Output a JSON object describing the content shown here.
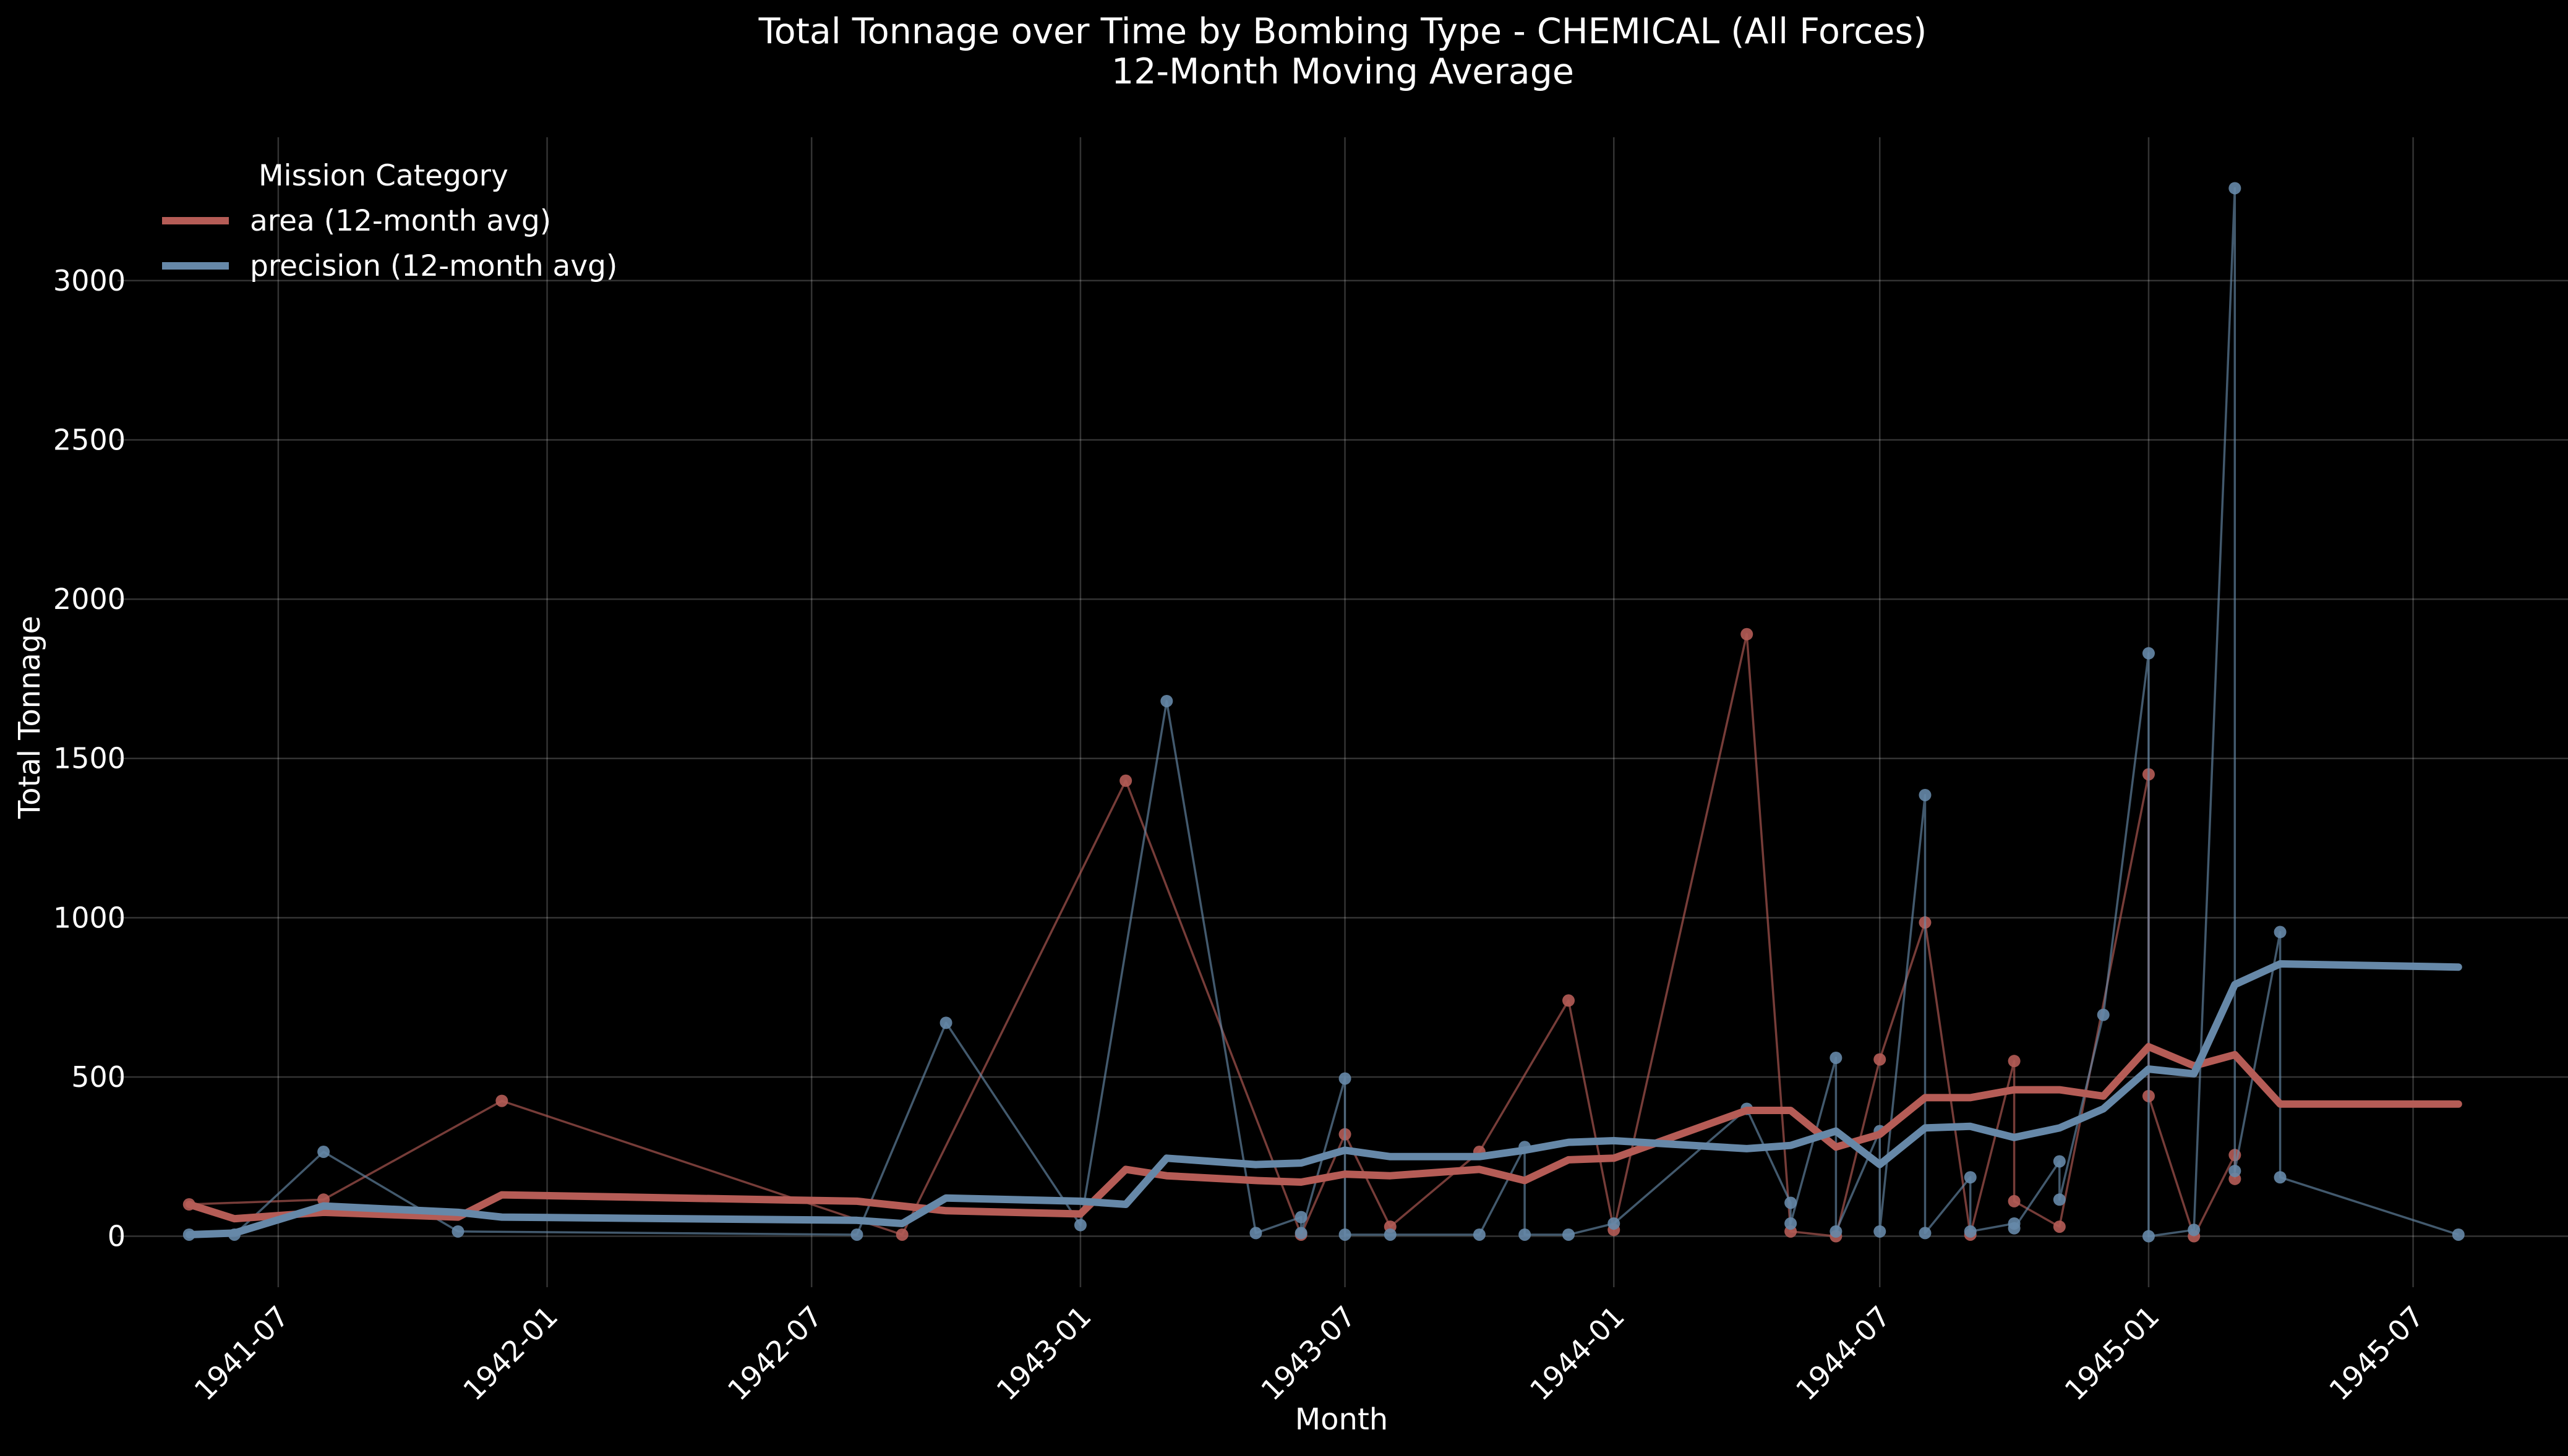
{
  "chart_data": {
    "type": "line",
    "title": "Total Tonnage over Time by Bombing Type - CHEMICAL (All Forces)",
    "subtitle": "12-Month Moving Average",
    "xlabel": "Month",
    "ylabel": "Total Tonnage",
    "x_axis_type": "date",
    "xlim": [
      "1941-03-13",
      "1945-10-15"
    ],
    "ylim": [
      -160,
      3450
    ],
    "x_ticks": [
      "1941-07",
      "1942-01",
      "1942-07",
      "1943-01",
      "1943-07",
      "1944-01",
      "1944-07",
      "1945-01",
      "1945-07"
    ],
    "y_ticks": [
      0,
      500,
      1000,
      1500,
      2000,
      2500,
      3000
    ],
    "grid": true,
    "background": "#000000",
    "legend": {
      "title": "Mission Category",
      "placement": "top-left"
    },
    "series": [
      {
        "name": "area (12-month avg)",
        "color": "#b55c56",
        "raw_points": [
          [
            "1941-05-01",
            100
          ],
          [
            "1941-08-01",
            115
          ],
          [
            "1941-12-01",
            425
          ],
          [
            "1942-09-01",
            5
          ],
          [
            "1943-02-01",
            1430
          ],
          [
            "1943-06-01",
            5
          ],
          [
            "1943-07-01",
            320
          ],
          [
            "1943-08-01",
            30
          ],
          [
            "1943-10-01",
            265
          ],
          [
            "1943-12-01",
            740
          ],
          [
            "1944-01-01",
            20
          ],
          [
            "1944-04-01",
            1890
          ],
          [
            "1944-05-01",
            15
          ],
          [
            "1944-06-01",
            0
          ],
          [
            "1944-07-01",
            555
          ],
          [
            "1944-08-01",
            985
          ],
          [
            "1944-09-01",
            5
          ],
          [
            "1944-10-01",
            550
          ],
          [
            "1944-10-01",
            110
          ],
          [
            "1944-11-01",
            30
          ],
          [
            "1945-01-01",
            1450
          ],
          [
            "1945-01-01",
            440
          ],
          [
            "1945-02-01",
            0
          ],
          [
            "1945-03-01",
            255
          ],
          [
            "1945-03-01",
            180
          ]
        ],
        "avg_points": [
          [
            "1941-05-01",
            100
          ],
          [
            "1941-06-01",
            55
          ],
          [
            "1941-08-01",
            75
          ],
          [
            "1941-11-01",
            60
          ],
          [
            "1941-12-01",
            130
          ],
          [
            "1942-08-01",
            110
          ],
          [
            "1942-09-01",
            95
          ],
          [
            "1942-10-01",
            80
          ],
          [
            "1943-01-01",
            70
          ],
          [
            "1943-02-01",
            210
          ],
          [
            "1943-03-01",
            190
          ],
          [
            "1943-05-01",
            175
          ],
          [
            "1943-06-01",
            170
          ],
          [
            "1943-07-01",
            195
          ],
          [
            "1943-08-01",
            190
          ],
          [
            "1943-10-01",
            210
          ],
          [
            "1943-11-01",
            175
          ],
          [
            "1943-12-01",
            240
          ],
          [
            "1944-01-01",
            245
          ],
          [
            "1944-04-01",
            395
          ],
          [
            "1944-05-01",
            395
          ],
          [
            "1944-06-01",
            280
          ],
          [
            "1944-07-01",
            320
          ],
          [
            "1944-08-01",
            435
          ],
          [
            "1944-09-01",
            435
          ],
          [
            "1944-10-01",
            460
          ],
          [
            "1944-11-01",
            460
          ],
          [
            "1944-12-01",
            440
          ],
          [
            "1945-01-01",
            595
          ],
          [
            "1945-02-01",
            535
          ],
          [
            "1945-03-01",
            570
          ],
          [
            "1945-04-01",
            415
          ],
          [
            "1945-08-01",
            415
          ]
        ]
      },
      {
        "name": "precision (12-month avg)",
        "color": "#6688a8",
        "raw_points": [
          [
            "1941-05-01",
            5
          ],
          [
            "1941-06-01",
            5
          ],
          [
            "1941-08-01",
            265
          ],
          [
            "1941-11-01",
            15
          ],
          [
            "1942-08-01",
            5
          ],
          [
            "1942-10-01",
            670
          ],
          [
            "1943-01-01",
            35
          ],
          [
            "1943-03-01",
            1680
          ],
          [
            "1943-05-01",
            10
          ],
          [
            "1943-06-01",
            60
          ],
          [
            "1943-06-01",
            10
          ],
          [
            "1943-07-01",
            495
          ],
          [
            "1943-07-01",
            5
          ],
          [
            "1943-08-01",
            5
          ],
          [
            "1943-10-01",
            5
          ],
          [
            "1943-11-01",
            280
          ],
          [
            "1943-11-01",
            5
          ],
          [
            "1943-12-01",
            5
          ],
          [
            "1944-01-01",
            40
          ],
          [
            "1944-04-01",
            400
          ],
          [
            "1944-05-01",
            105
          ],
          [
            "1944-05-01",
            40
          ],
          [
            "1944-06-01",
            560
          ],
          [
            "1944-06-01",
            15
          ],
          [
            "1944-07-01",
            330
          ],
          [
            "1944-07-01",
            15
          ],
          [
            "1944-08-01",
            1385
          ],
          [
            "1944-08-01",
            10
          ],
          [
            "1944-09-01",
            185
          ],
          [
            "1944-09-01",
            15
          ],
          [
            "1944-10-01",
            40
          ],
          [
            "1944-10-01",
            25
          ],
          [
            "1944-11-01",
            235
          ],
          [
            "1944-11-01",
            115
          ],
          [
            "1944-12-01",
            695
          ],
          [
            "1945-01-01",
            1830
          ],
          [
            "1945-01-01",
            0
          ],
          [
            "1945-02-01",
            20
          ],
          [
            "1945-03-01",
            3290
          ],
          [
            "1945-03-01",
            205
          ],
          [
            "1945-04-01",
            955
          ],
          [
            "1945-04-01",
            185
          ],
          [
            "1945-08-01",
            5
          ]
        ],
        "avg_points": [
          [
            "1941-05-01",
            5
          ],
          [
            "1941-06-01",
            10
          ],
          [
            "1941-08-01",
            95
          ],
          [
            "1941-11-01",
            75
          ],
          [
            "1941-12-01",
            60
          ],
          [
            "1942-08-01",
            50
          ],
          [
            "1942-09-01",
            40
          ],
          [
            "1942-10-01",
            120
          ],
          [
            "1943-01-01",
            110
          ],
          [
            "1943-02-01",
            100
          ],
          [
            "1943-03-01",
            245
          ],
          [
            "1943-05-01",
            225
          ],
          [
            "1943-06-01",
            230
          ],
          [
            "1943-07-01",
            270
          ],
          [
            "1943-08-01",
            250
          ],
          [
            "1943-10-01",
            250
          ],
          [
            "1943-11-01",
            270
          ],
          [
            "1943-12-01",
            295
          ],
          [
            "1944-01-01",
            300
          ],
          [
            "1944-04-01",
            275
          ],
          [
            "1944-05-01",
            285
          ],
          [
            "1944-06-01",
            330
          ],
          [
            "1944-07-01",
            225
          ],
          [
            "1944-08-01",
            340
          ],
          [
            "1944-09-01",
            345
          ],
          [
            "1944-10-01",
            310
          ],
          [
            "1944-11-01",
            340
          ],
          [
            "1944-12-01",
            400
          ],
          [
            "1945-01-01",
            525
          ],
          [
            "1945-02-01",
            510
          ],
          [
            "1945-03-01",
            790
          ],
          [
            "1945-04-01",
            855
          ],
          [
            "1945-08-01",
            845
          ]
        ]
      }
    ]
  }
}
